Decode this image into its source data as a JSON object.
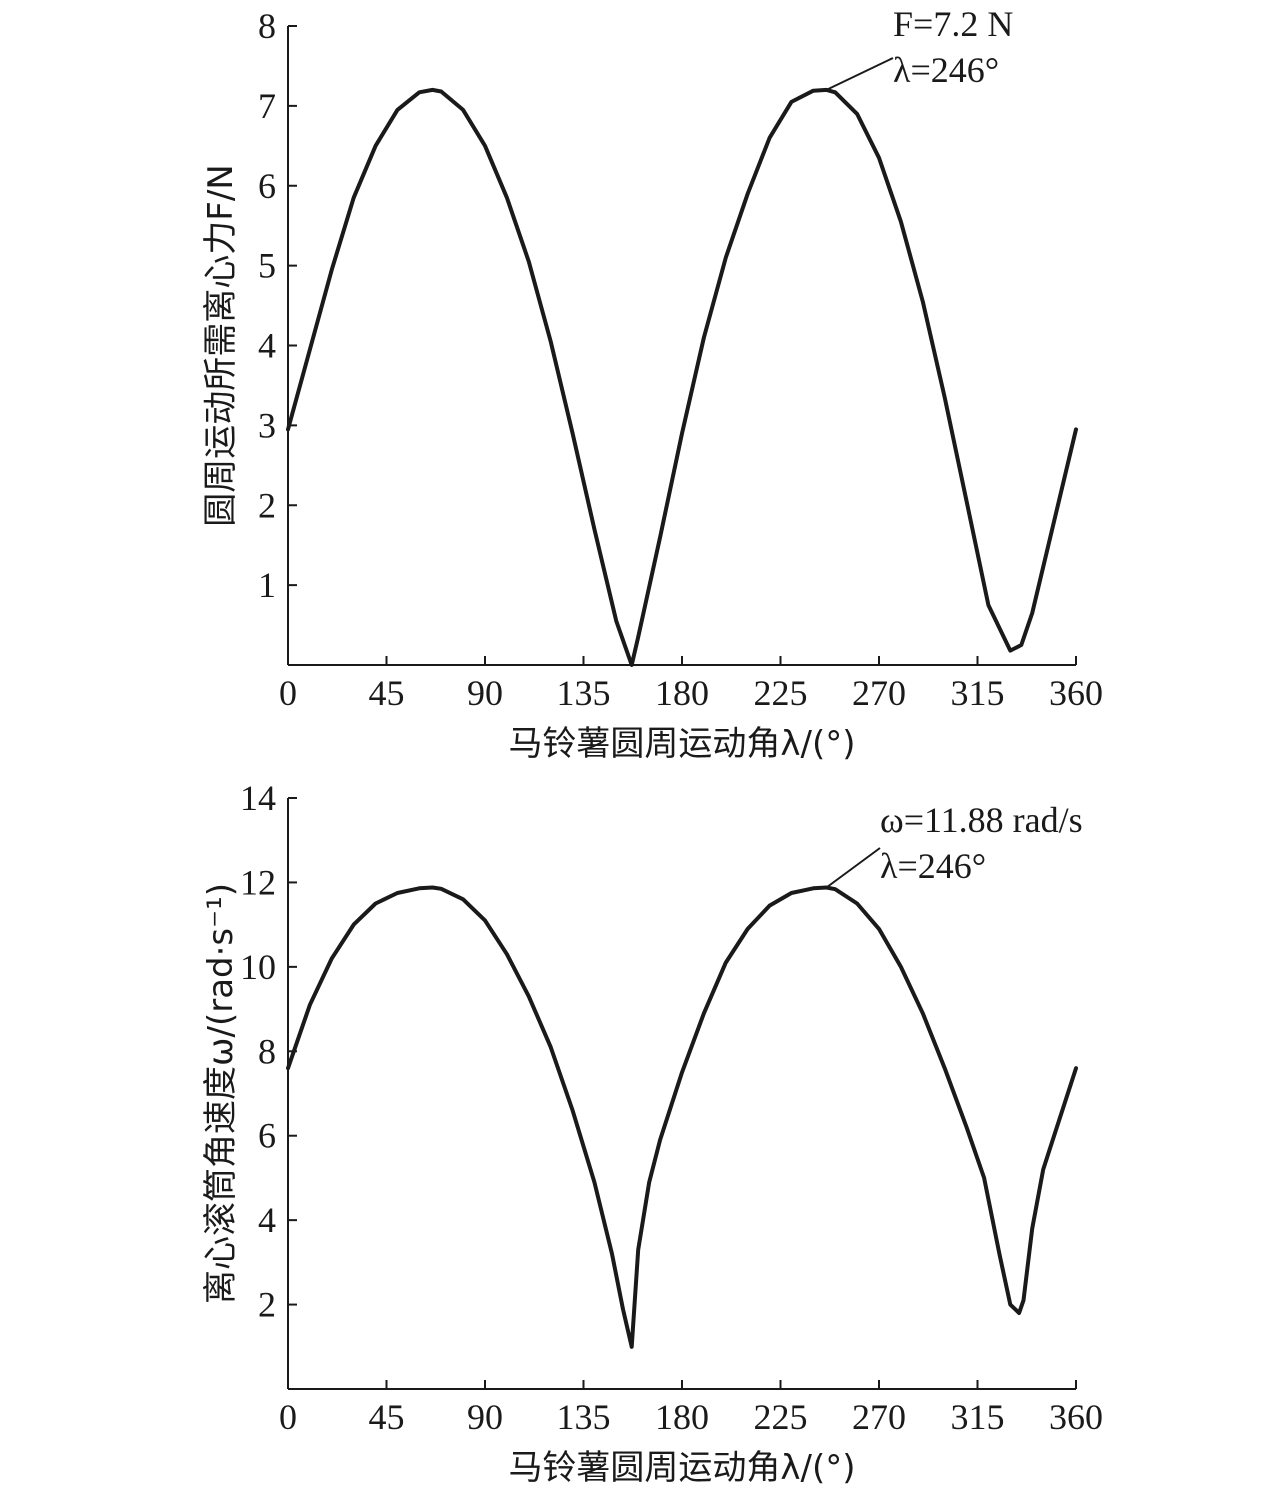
{
  "chart_data": [
    {
      "type": "line",
      "xlabel": "马铃薯圆周运动角λ/(°)",
      "ylabel": "圆周运动所需离心力F/N",
      "xlim": [
        0,
        360
      ],
      "ylim": [
        0,
        8
      ],
      "xticks": [
        "0",
        "45",
        "90",
        "135",
        "180",
        "225",
        "270",
        "315",
        "360"
      ],
      "yticks": [
        "1",
        "2",
        "3",
        "4",
        "5",
        "6",
        "7",
        "8"
      ],
      "grid": false,
      "annotation": {
        "line1": "F=7.2 N",
        "line2": "λ=246°",
        "x": 246,
        "y": 7.2
      },
      "series": [
        {
          "x": [
            0,
            10,
            20,
            30,
            40,
            50,
            60,
            66,
            70,
            80,
            90,
            100,
            110,
            120,
            130,
            140,
            150,
            157,
            160,
            170,
            180,
            190,
            200,
            210,
            220,
            230,
            240,
            246,
            250,
            260,
            270,
            280,
            290,
            300,
            310,
            320,
            330,
            335,
            340,
            350,
            360
          ],
          "y": [
            2.95,
            3.95,
            4.95,
            5.85,
            6.5,
            6.95,
            7.17,
            7.2,
            7.18,
            6.95,
            6.5,
            5.85,
            5.05,
            4.05,
            2.9,
            1.7,
            0.55,
            0.0,
            0.35,
            1.6,
            2.9,
            4.1,
            5.1,
            5.9,
            6.6,
            7.05,
            7.19,
            7.2,
            7.17,
            6.9,
            6.35,
            5.55,
            4.55,
            3.35,
            2.05,
            0.75,
            0.18,
            0.25,
            0.65,
            1.8,
            2.95
          ]
        }
      ]
    },
    {
      "type": "line",
      "xlabel": "马铃薯圆周运动角λ/(°)",
      "ylabel": "离心滚筒角速度ω/(rad·s⁻¹)",
      "xlim": [
        0,
        360
      ],
      "ylim": [
        0,
        14
      ],
      "xticks": [
        "0",
        "45",
        "90",
        "135",
        "180",
        "225",
        "270",
        "315",
        "360"
      ],
      "yticks": [
        "2",
        "4",
        "6",
        "8",
        "10",
        "12",
        "14"
      ],
      "grid": false,
      "annotation": {
        "line1": "ω=11.88 rad/s",
        "line2": "λ=246°",
        "x": 246,
        "y": 11.88
      },
      "series": [
        {
          "x": [
            0,
            10,
            20,
            30,
            40,
            50,
            60,
            66,
            70,
            80,
            90,
            100,
            110,
            120,
            130,
            140,
            148,
            153,
            157,
            160,
            165,
            170,
            180,
            190,
            200,
            210,
            220,
            230,
            240,
            246,
            250,
            260,
            270,
            280,
            290,
            300,
            310,
            318,
            325,
            330,
            334,
            336,
            340,
            345,
            350,
            360
          ],
          "y": [
            7.6,
            9.1,
            10.2,
            11.0,
            11.5,
            11.75,
            11.86,
            11.88,
            11.85,
            11.6,
            11.1,
            10.3,
            9.3,
            8.1,
            6.6,
            4.9,
            3.2,
            1.9,
            1.0,
            3.3,
            4.9,
            5.9,
            7.5,
            8.9,
            10.1,
            10.9,
            11.45,
            11.75,
            11.86,
            11.88,
            11.84,
            11.5,
            10.9,
            10.0,
            8.9,
            7.6,
            6.2,
            5.0,
            3.2,
            2.0,
            1.8,
            2.1,
            3.8,
            5.2,
            6.0,
            7.6
          ]
        }
      ]
    }
  ]
}
